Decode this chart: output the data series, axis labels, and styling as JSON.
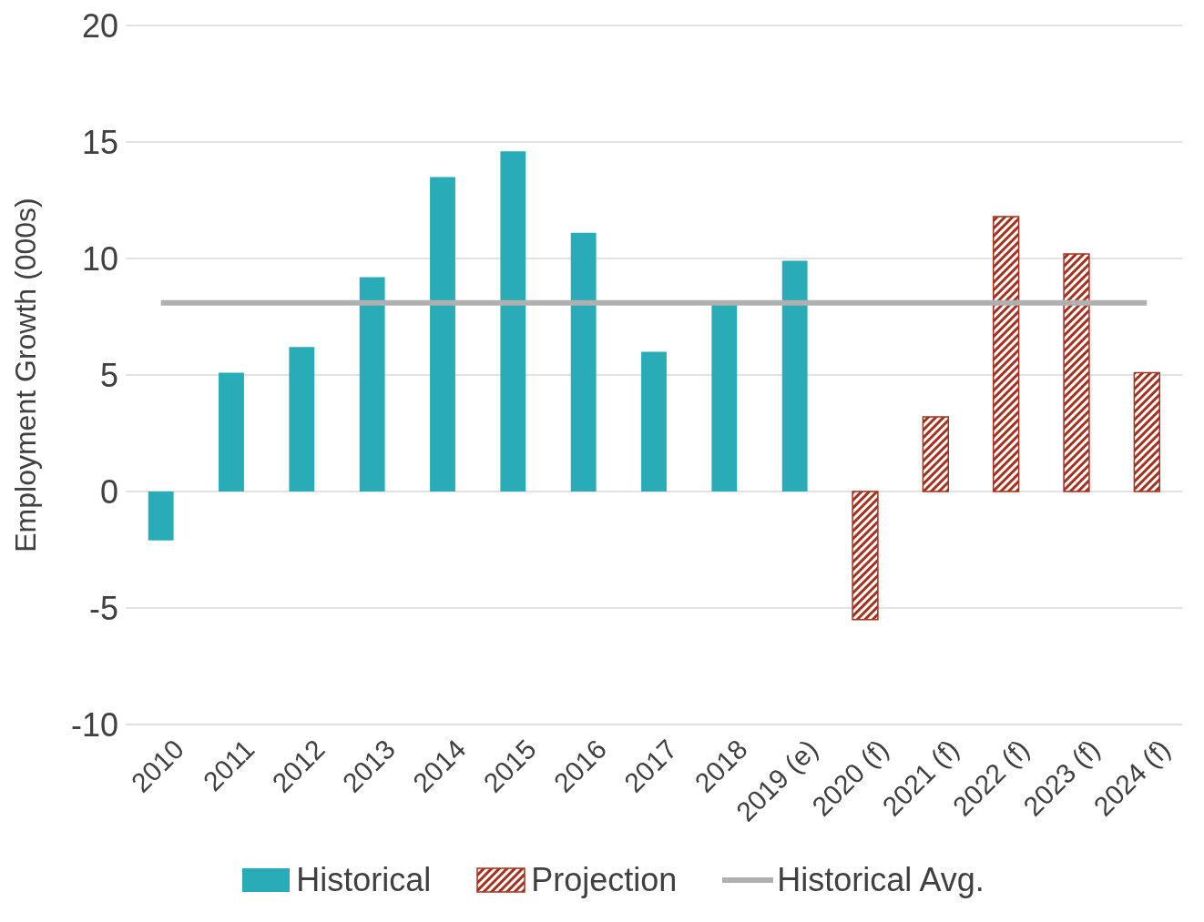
{
  "chart_data": {
    "type": "bar",
    "ylabel": "Employment Growth (000s)",
    "categories": [
      "2010",
      "2011",
      "2012",
      "2013",
      "2014",
      "2015",
      "2016",
      "2017",
      "2018",
      "2019 (e)",
      "2020 (f)",
      "2021 (f)",
      "2022 (f)",
      "2023 (f)",
      "2024 (f)"
    ],
    "series": [
      {
        "name": "Historical",
        "color": "#2aacb8",
        "values": [
          -2.1,
          5.1,
          6.2,
          9.2,
          13.5,
          14.6,
          11.1,
          6.0,
          8.1,
          9.9,
          null,
          null,
          null,
          null,
          null
        ]
      },
      {
        "name": "Projection",
        "color": "#a5321e",
        "values": [
          null,
          null,
          null,
          null,
          null,
          null,
          null,
          null,
          null,
          null,
          -5.5,
          3.2,
          11.8,
          10.2,
          5.1
        ]
      },
      {
        "name": "Historical Avg.",
        "type": "line",
        "color": "#b0b0b0",
        "values": [
          8.1,
          8.1,
          8.1,
          8.1,
          8.1,
          8.1,
          8.1,
          8.1,
          8.1,
          8.1,
          8.1,
          8.1,
          8.1,
          8.1,
          8.1
        ]
      }
    ],
    "ylim": [
      -10,
      20
    ],
    "yticks": [
      -10,
      -5,
      0,
      5,
      10,
      15,
      20
    ],
    "grid": "y",
    "legend": "bottom"
  }
}
